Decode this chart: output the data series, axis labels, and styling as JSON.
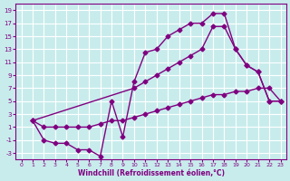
{
  "background_color": "#c8ecec",
  "line_color": "#800080",
  "xlabel": "Windchill (Refroidissement éolien,°C)",
  "xlim": [
    -0.5,
    23.5
  ],
  "ylim": [
    -4,
    20
  ],
  "xticks": [
    0,
    1,
    2,
    3,
    4,
    5,
    6,
    7,
    8,
    9,
    10,
    11,
    12,
    13,
    14,
    15,
    16,
    17,
    18,
    19,
    20,
    21,
    22,
    23
  ],
  "yticks": [
    -3,
    -1,
    1,
    3,
    5,
    7,
    9,
    11,
    13,
    15,
    17,
    19
  ],
  "grid_color": "#ffffff",
  "line1_x": [
    1,
    2,
    3,
    4,
    5,
    6,
    7,
    8,
    9,
    10,
    11,
    12,
    13,
    14,
    15,
    16,
    17,
    18,
    19,
    20,
    21,
    22,
    23
  ],
  "line1_y": [
    2,
    -1,
    -1.5,
    -1.5,
    -2.5,
    -2.5,
    -3.5,
    5,
    -0.5,
    8,
    12.5,
    13,
    15,
    16,
    17,
    17,
    18.5,
    18.5,
    13,
    10.5,
    9.5,
    5,
    5
  ],
  "line2_x": [
    1,
    10,
    11,
    12,
    13,
    14,
    15,
    16,
    17,
    18,
    19,
    20,
    21,
    22,
    23
  ],
  "line2_y": [
    2,
    7,
    8,
    9,
    10,
    11,
    12,
    13,
    16.5,
    16.5,
    13,
    10.5,
    9.5,
    5,
    5
  ],
  "line3_x": [
    1,
    2,
    3,
    4,
    5,
    6,
    7,
    8,
    9,
    10,
    11,
    12,
    13,
    14,
    15,
    16,
    17,
    18,
    19,
    20,
    21,
    22,
    23
  ],
  "line3_y": [
    2,
    1,
    1,
    1,
    1,
    1,
    1.5,
    2,
    2,
    2.5,
    3,
    3.5,
    4,
    4.5,
    5,
    5.5,
    6,
    6,
    6.5,
    6.5,
    7,
    7,
    5
  ],
  "marker": "D",
  "markersize": 2.5,
  "linewidth": 1.0
}
